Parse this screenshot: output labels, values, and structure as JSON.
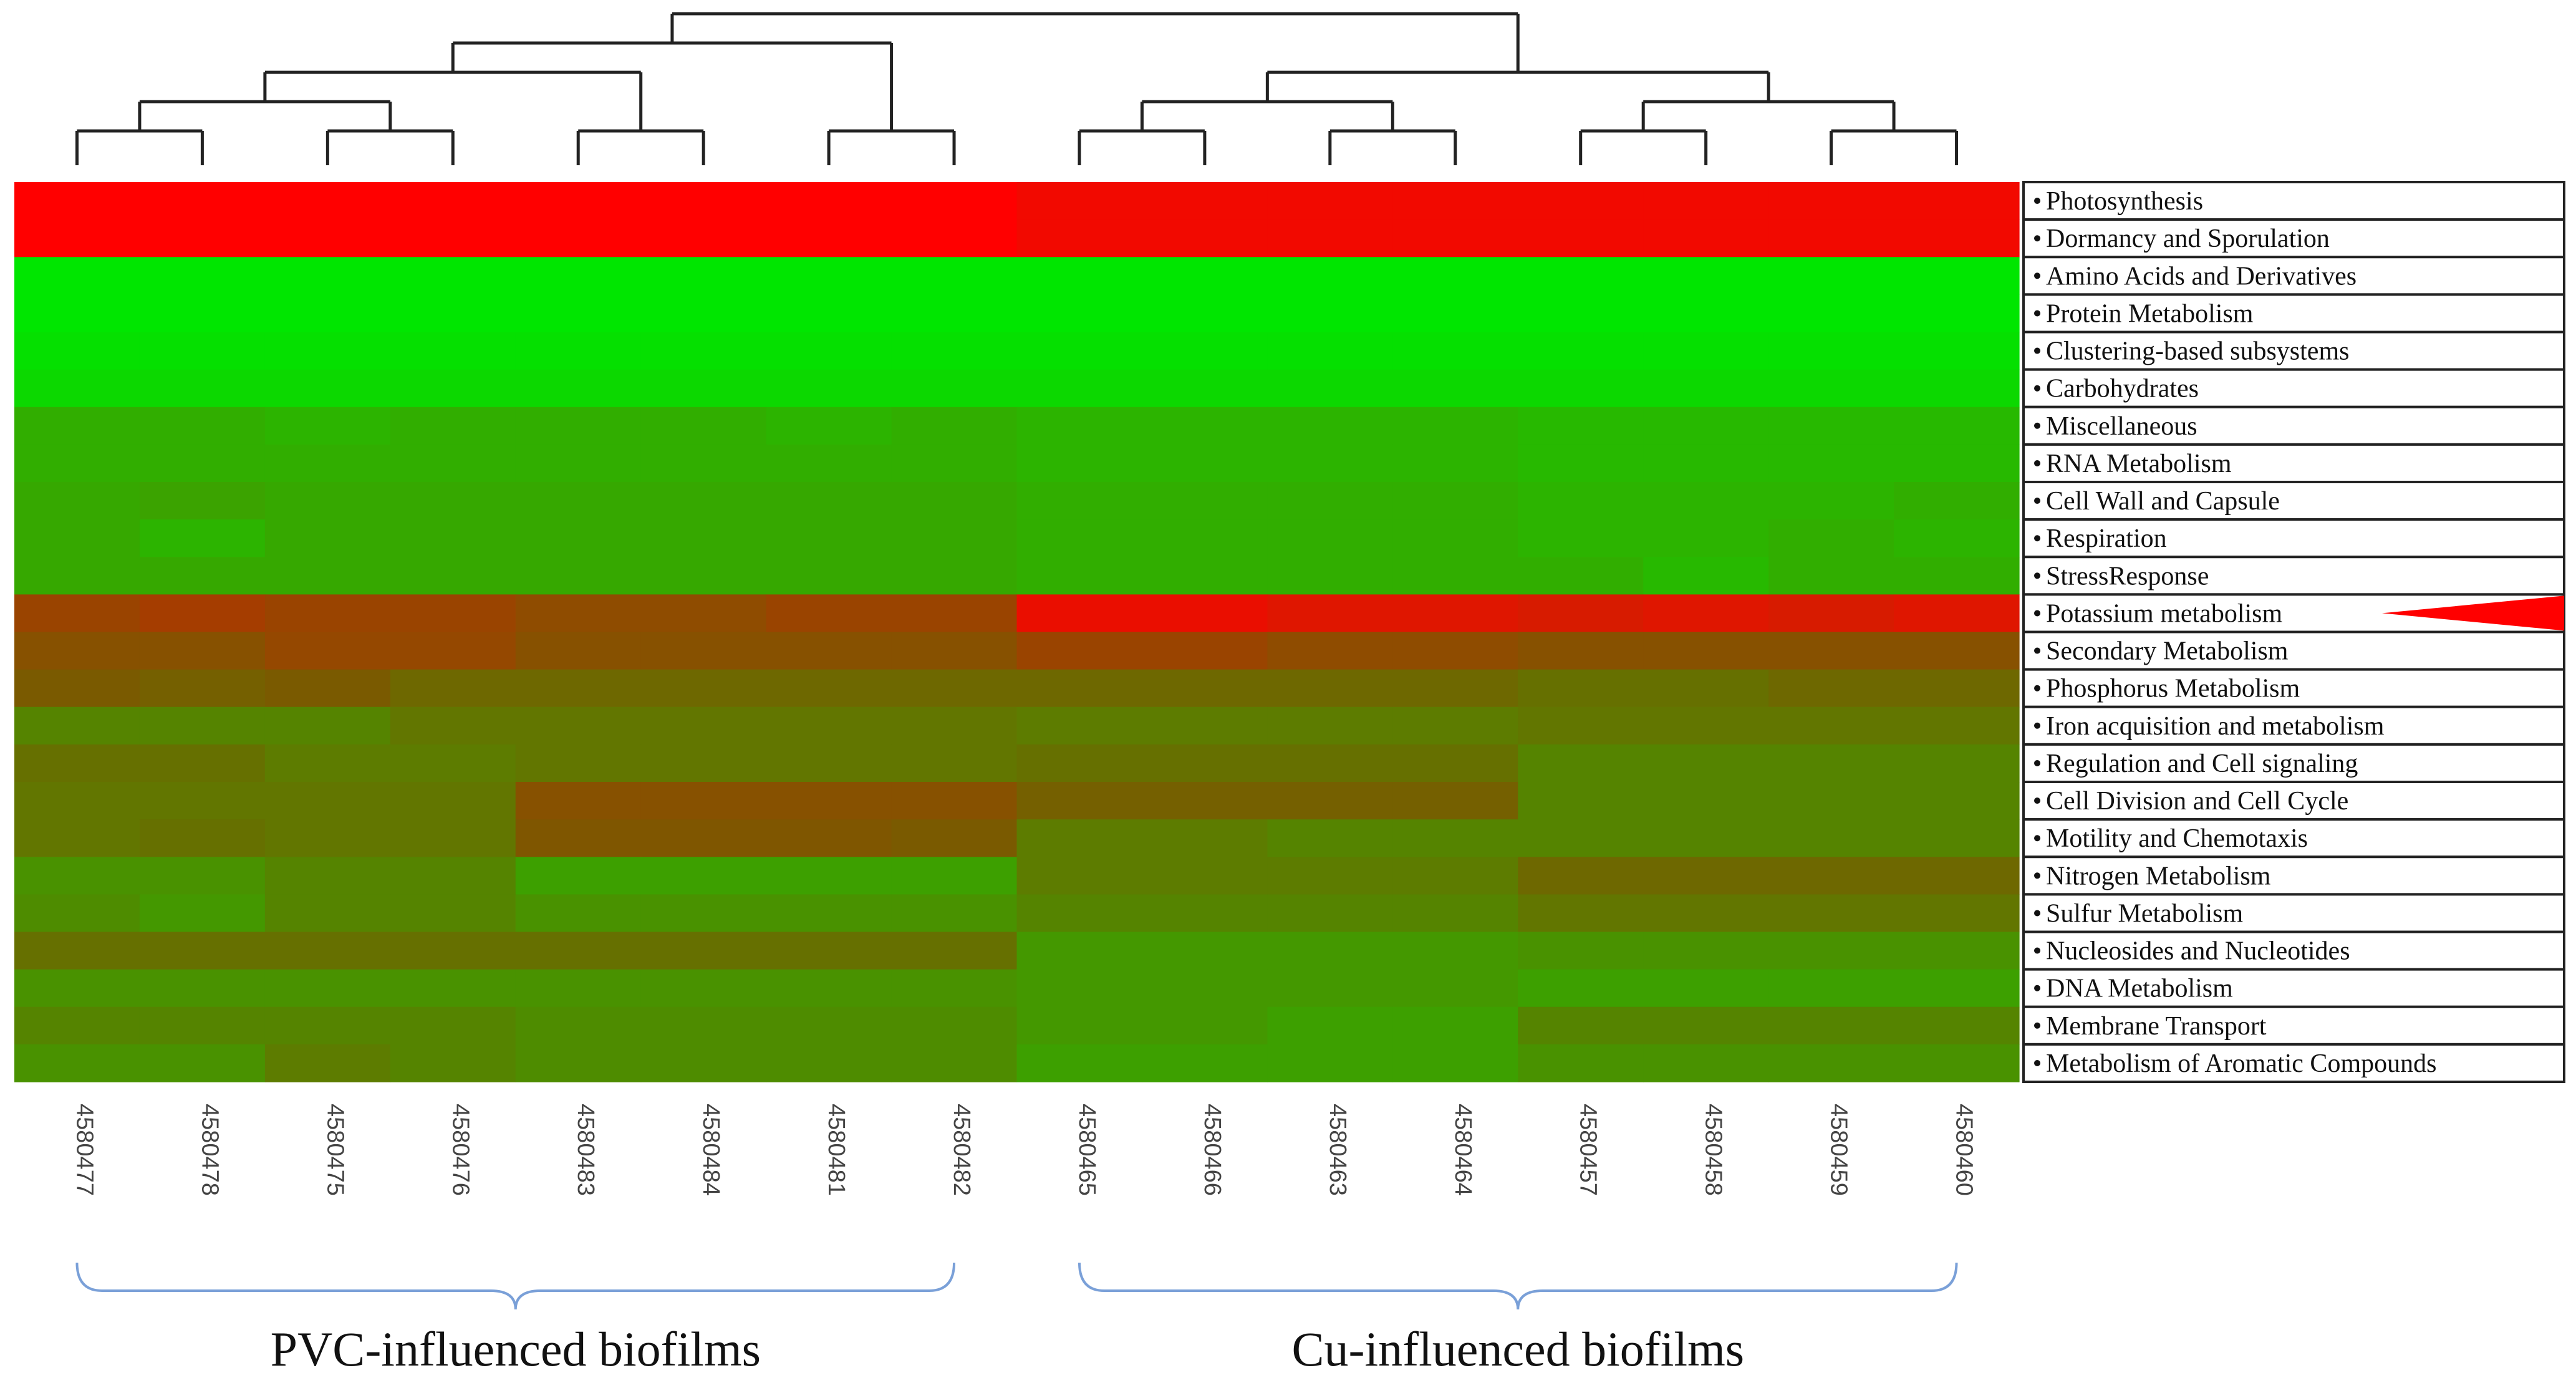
{
  "chart_data": {
    "type": "heatmap",
    "colors": {
      "low": "#00e600",
      "mid": "#7a5a00",
      "high": "#ff0000",
      "dendrogram": "#222222",
      "bracket": "#7aa0d8",
      "highlight_marker": "#ff0000"
    },
    "samples": [
      "4580477",
      "4580478",
      "4580475",
      "4580476",
      "4580483",
      "4580484",
      "4580481",
      "4580482",
      "4580465",
      "4580466",
      "4580463",
      "4580464",
      "4580457",
      "4580458",
      "4580459",
      "4580460"
    ],
    "rows": [
      "Photosynthesis",
      "Dormancy and Sporulation",
      "Amino Acids and Derivatives",
      "Protein Metabolism",
      "Clustering-based subsystems",
      "Carbohydrates",
      "Miscellaneous",
      "RNA Metabolism",
      "Cell Wall and Capsule",
      "Respiration",
      "StressResponse",
      "Potassium metabolism",
      "Secondary Metabolism",
      "Phosphorus Metabolism",
      "Iron acquisition and metabolism",
      "Regulation and Cell signaling",
      "Cell Division and Cell Cycle",
      "Motility and Chemotaxis",
      "Nitrogen Metabolism",
      "Sulfur Metabolism",
      "Nucleosides and Nucleotides",
      "DNA Metabolism",
      "Membrane Transport",
      "Metabolism of Aromatic Compounds"
    ],
    "values": [
      [
        1.0,
        1.0,
        1.0,
        1.0,
        1.0,
        1.0,
        1.0,
        1.0,
        0.95,
        0.95,
        0.95,
        0.95,
        0.95,
        0.95,
        0.95,
        0.95
      ],
      [
        1.0,
        1.0,
        1.0,
        1.0,
        1.0,
        1.0,
        1.0,
        1.0,
        0.95,
        0.95,
        0.95,
        0.95,
        0.95,
        0.95,
        0.95,
        0.95
      ],
      [
        0.0,
        0.0,
        0.0,
        0.0,
        0.0,
        0.0,
        0.0,
        0.0,
        0.0,
        0.0,
        0.0,
        0.0,
        0.0,
        0.0,
        0.0,
        0.0
      ],
      [
        0.0,
        0.0,
        0.0,
        0.0,
        0.0,
        0.0,
        0.0,
        0.0,
        0.0,
        0.0,
        0.0,
        0.0,
        0.0,
        0.0,
        0.0,
        0.0
      ],
      [
        0.02,
        0.02,
        0.02,
        0.02,
        0.02,
        0.02,
        0.02,
        0.02,
        0.02,
        0.02,
        0.02,
        0.02,
        0.02,
        0.02,
        0.02,
        0.02
      ],
      [
        0.05,
        0.05,
        0.05,
        0.05,
        0.05,
        0.05,
        0.05,
        0.05,
        0.05,
        0.05,
        0.05,
        0.05,
        0.05,
        0.05,
        0.05,
        0.05
      ],
      [
        0.2,
        0.2,
        0.18,
        0.2,
        0.2,
        0.2,
        0.18,
        0.2,
        0.18,
        0.18,
        0.18,
        0.18,
        0.16,
        0.16,
        0.16,
        0.16
      ],
      [
        0.2,
        0.2,
        0.2,
        0.2,
        0.2,
        0.2,
        0.2,
        0.2,
        0.18,
        0.18,
        0.18,
        0.18,
        0.16,
        0.16,
        0.16,
        0.16
      ],
      [
        0.22,
        0.24,
        0.22,
        0.22,
        0.22,
        0.22,
        0.22,
        0.22,
        0.2,
        0.2,
        0.2,
        0.2,
        0.18,
        0.18,
        0.18,
        0.2
      ],
      [
        0.22,
        0.18,
        0.22,
        0.22,
        0.22,
        0.22,
        0.22,
        0.22,
        0.2,
        0.2,
        0.2,
        0.2,
        0.18,
        0.18,
        0.2,
        0.18
      ],
      [
        0.22,
        0.22,
        0.22,
        0.22,
        0.22,
        0.22,
        0.22,
        0.22,
        0.2,
        0.2,
        0.2,
        0.2,
        0.2,
        0.16,
        0.2,
        0.2
      ],
      [
        0.62,
        0.66,
        0.62,
        0.62,
        0.58,
        0.58,
        0.62,
        0.62,
        0.92,
        0.92,
        0.88,
        0.88,
        0.85,
        0.88,
        0.85,
        0.88
      ],
      [
        0.55,
        0.55,
        0.6,
        0.6,
        0.55,
        0.55,
        0.55,
        0.55,
        0.62,
        0.62,
        0.58,
        0.58,
        0.55,
        0.55,
        0.55,
        0.55
      ],
      [
        0.5,
        0.48,
        0.5,
        0.45,
        0.45,
        0.45,
        0.45,
        0.45,
        0.45,
        0.45,
        0.45,
        0.45,
        0.42,
        0.42,
        0.45,
        0.45
      ],
      [
        0.35,
        0.35,
        0.35,
        0.4,
        0.4,
        0.4,
        0.4,
        0.4,
        0.38,
        0.38,
        0.38,
        0.38,
        0.4,
        0.4,
        0.4,
        0.4
      ],
      [
        0.42,
        0.42,
        0.38,
        0.38,
        0.4,
        0.4,
        0.4,
        0.4,
        0.42,
        0.42,
        0.42,
        0.42,
        0.35,
        0.35,
        0.35,
        0.35
      ],
      [
        0.4,
        0.4,
        0.4,
        0.4,
        0.55,
        0.55,
        0.55,
        0.55,
        0.48,
        0.48,
        0.48,
        0.48,
        0.35,
        0.35,
        0.35,
        0.35
      ],
      [
        0.4,
        0.42,
        0.4,
        0.4,
        0.52,
        0.52,
        0.52,
        0.5,
        0.38,
        0.38,
        0.35,
        0.35,
        0.35,
        0.35,
        0.35,
        0.35
      ],
      [
        0.3,
        0.3,
        0.35,
        0.35,
        0.25,
        0.25,
        0.25,
        0.25,
        0.38,
        0.38,
        0.38,
        0.38,
        0.45,
        0.45,
        0.45,
        0.45
      ],
      [
        0.32,
        0.28,
        0.35,
        0.35,
        0.3,
        0.3,
        0.3,
        0.3,
        0.35,
        0.35,
        0.35,
        0.35,
        0.4,
        0.4,
        0.4,
        0.4
      ],
      [
        0.42,
        0.42,
        0.42,
        0.42,
        0.42,
        0.42,
        0.42,
        0.42,
        0.28,
        0.28,
        0.28,
        0.28,
        0.3,
        0.3,
        0.3,
        0.3
      ],
      [
        0.3,
        0.3,
        0.3,
        0.3,
        0.3,
        0.3,
        0.3,
        0.3,
        0.28,
        0.28,
        0.28,
        0.28,
        0.25,
        0.25,
        0.25,
        0.25
      ],
      [
        0.35,
        0.35,
        0.35,
        0.35,
        0.32,
        0.32,
        0.32,
        0.32,
        0.28,
        0.28,
        0.25,
        0.25,
        0.35,
        0.35,
        0.35,
        0.35
      ],
      [
        0.3,
        0.3,
        0.38,
        0.35,
        0.32,
        0.32,
        0.32,
        0.32,
        0.25,
        0.25,
        0.25,
        0.25,
        0.3,
        0.3,
        0.3,
        0.3
      ]
    ],
    "highlighted_row": "Potassium metabolism",
    "dendrogram": {
      "nodes": [
        {
          "id": "a",
          "children": [
            0,
            1
          ],
          "h": 1
        },
        {
          "id": "b",
          "children": [
            2,
            3
          ],
          "h": 1
        },
        {
          "id": "c",
          "children": [
            "a",
            "b"
          ],
          "h": 2
        },
        {
          "id": "d",
          "children": [
            4,
            5
          ],
          "h": 1
        },
        {
          "id": "e",
          "children": [
            "c",
            "d"
          ],
          "h": 3
        },
        {
          "id": "f",
          "children": [
            6,
            7
          ],
          "h": 1
        },
        {
          "id": "g",
          "children": [
            "e",
            "f"
          ],
          "h": 4
        },
        {
          "id": "h",
          "children": [
            8,
            9
          ],
          "h": 1
        },
        {
          "id": "i",
          "children": [
            10,
            11
          ],
          "h": 1
        },
        {
          "id": "j",
          "children": [
            "h",
            "i"
          ],
          "h": 2
        },
        {
          "id": "k",
          "children": [
            12,
            13
          ],
          "h": 1
        },
        {
          "id": "l",
          "children": [
            14,
            15
          ],
          "h": 1
        },
        {
          "id": "m",
          "children": [
            "k",
            "l"
          ],
          "h": 2
        },
        {
          "id": "n",
          "children": [
            "j",
            "m"
          ],
          "h": 3
        },
        {
          "id": "o",
          "children": [
            "g",
            "n"
          ],
          "h": 5
        }
      ]
    },
    "groups": [
      {
        "label": "PVC-influenced biofilms",
        "from": 0,
        "to": 7
      },
      {
        "label": "Cu-influenced biofilms",
        "from": 8,
        "to": 15
      }
    ]
  }
}
